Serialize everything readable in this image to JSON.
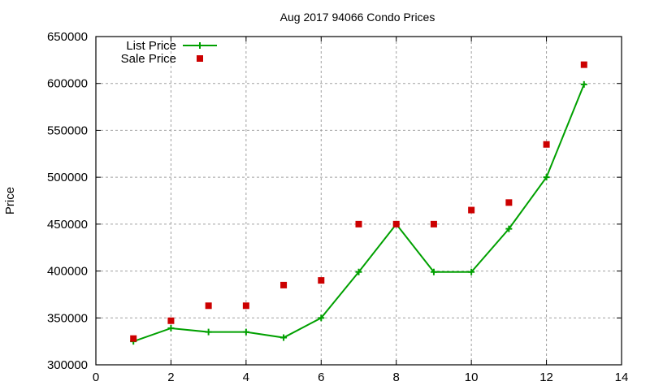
{
  "chart_data": {
    "type": "line",
    "title": "Aug 2017 94066 Condo Prices",
    "xlabel": "",
    "ylabel": "Price",
    "xlim": [
      0,
      14
    ],
    "ylim": [
      300000,
      650000
    ],
    "x_ticks": [
      0,
      2,
      4,
      6,
      8,
      10,
      12,
      14
    ],
    "y_ticks": [
      300000,
      350000,
      400000,
      450000,
      500000,
      550000,
      600000,
      650000
    ],
    "grid": true,
    "legend_position": "top-left",
    "x": [
      1,
      2,
      3,
      4,
      5,
      6,
      7,
      8,
      9,
      10,
      11,
      12,
      13
    ],
    "series": [
      {
        "name": "List Price",
        "style": "linespoints",
        "marker": "plus",
        "color": "#00a000",
        "values": [
          325000,
          339000,
          335000,
          335000,
          329000,
          350000,
          399000,
          450000,
          399000,
          399000,
          445000,
          500000,
          599000
        ]
      },
      {
        "name": "Sale Price",
        "style": "points",
        "marker": "square",
        "color": "#cc0000",
        "values": [
          328000,
          347000,
          363000,
          363000,
          385000,
          390000,
          450000,
          450000,
          450000,
          465000,
          473000,
          535000,
          620000
        ]
      }
    ]
  }
}
